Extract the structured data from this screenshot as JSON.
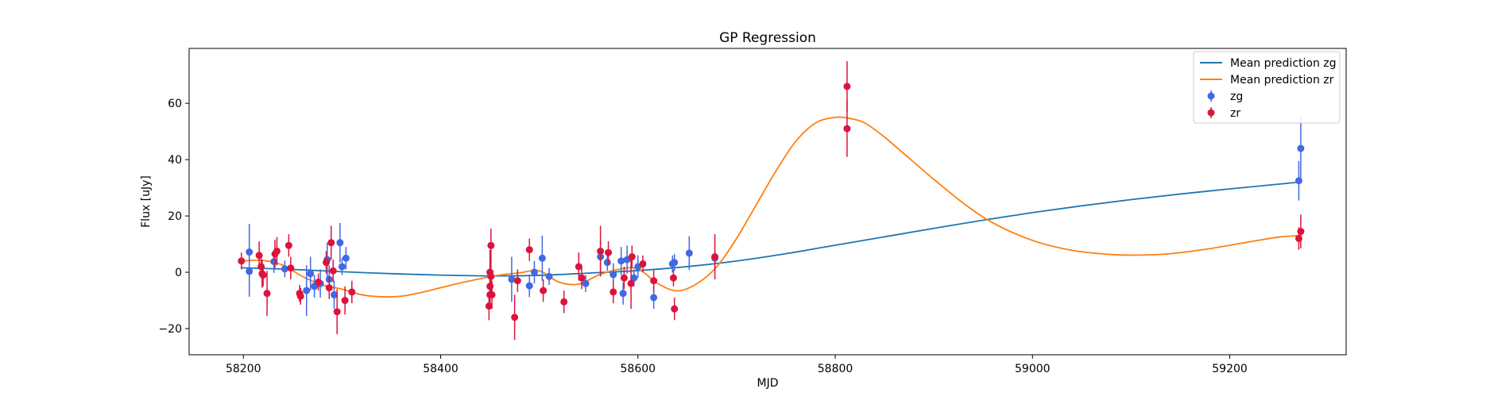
{
  "chart_data": {
    "type": "scatter",
    "title": "GP Regression",
    "xlabel": "MJD",
    "ylabel": "Flux [uJy]",
    "xlim": [
      58145,
      59318
    ],
    "ylim": [
      -29.3,
      79.5
    ],
    "xticks": [
      58200,
      58400,
      58600,
      58800,
      59000,
      59200
    ],
    "yticks": [
      -20,
      0,
      20,
      40,
      60
    ],
    "grid": false,
    "legend_position": "top-right",
    "legend": [
      {
        "label": "Mean prediction zg",
        "kind": "line",
        "color": "#1f77b4"
      },
      {
        "label": "Mean prediction zr",
        "kind": "line",
        "color": "#ff7f0e"
      },
      {
        "label": "zg",
        "kind": "errorbar",
        "color": "#4169e1"
      },
      {
        "label": "zr",
        "kind": "errorbar",
        "color": "#dc143c"
      }
    ],
    "lines": [
      {
        "name": "Mean prediction zg",
        "color": "#1f77b4",
        "x": [
          58198,
          58250,
          58300,
          58350,
          58400,
          58450,
          58500,
          58550,
          58600,
          58650,
          58700,
          58750,
          58800,
          58850,
          58900,
          58950,
          59000,
          59050,
          59100,
          59150,
          59200,
          59250,
          59270
        ],
        "y": [
          1.6,
          1.0,
          0.2,
          -0.5,
          -1.0,
          -1.3,
          -1.1,
          -0.3,
          0.6,
          2.0,
          4.0,
          6.6,
          9.6,
          12.6,
          15.6,
          18.5,
          21.2,
          23.6,
          25.8,
          27.8,
          29.6,
          31.3,
          32.0
        ]
      },
      {
        "name": "Mean prediction zr",
        "color": "#ff7f0e",
        "x": [
          58198,
          58220,
          58240,
          58260,
          58280,
          58300,
          58320,
          58340,
          58360,
          58380,
          58400,
          58420,
          58440,
          58460,
          58480,
          58500,
          58520,
          58540,
          58560,
          58580,
          58600,
          58620,
          58640,
          58660,
          58680,
          58700,
          58720,
          58740,
          58760,
          58780,
          58800,
          58815,
          58830,
          58850,
          58870,
          58900,
          58930,
          58960,
          59000,
          59040,
          59080,
          59110,
          59140,
          59180,
          59220,
          59250,
          59270
        ],
        "y": [
          4.0,
          4.2,
          2.5,
          -1.5,
          -4.5,
          -6.0,
          -8.0,
          -8.7,
          -8.5,
          -7.2,
          -5.5,
          -3.8,
          -2.3,
          -1.0,
          -0.2,
          0.5,
          -3.5,
          -4.2,
          -1.0,
          1.0,
          1.2,
          -4.0,
          -6.6,
          -4.0,
          2.0,
          12.0,
          24.0,
          36.0,
          46.5,
          53.0,
          55.0,
          54.6,
          53.0,
          48.0,
          42.0,
          33.0,
          24.5,
          17.5,
          11.3,
          7.8,
          6.3,
          6.1,
          6.6,
          8.4,
          10.8,
          12.5,
          13.0
        ]
      }
    ],
    "series": [
      {
        "name": "zg",
        "color": "#4169e1",
        "points": [
          {
            "x": 58206,
            "y": 7.2,
            "err": 10
          },
          {
            "x": 58206,
            "y": 0.3,
            "err": 9
          },
          {
            "x": 58231,
            "y": 3.8,
            "err": 4
          },
          {
            "x": 58242,
            "y": 1.2,
            "err": 3
          },
          {
            "x": 58264,
            "y": -6.5,
            "err": 9
          },
          {
            "x": 58268,
            "y": -0.5,
            "err": 6
          },
          {
            "x": 58272,
            "y": -5.0,
            "err": 4
          },
          {
            "x": 58278,
            "y": -4.0,
            "err": 5
          },
          {
            "x": 58285,
            "y": 4.5,
            "err": 6
          },
          {
            "x": 58287,
            "y": -2.5,
            "err": 5
          },
          {
            "x": 58292,
            "y": -8.0,
            "err": 5
          },
          {
            "x": 58298,
            "y": 10.5,
            "err": 7
          },
          {
            "x": 58300,
            "y": 2.0,
            "err": 3
          },
          {
            "x": 58304,
            "y": 5.0,
            "err": 4
          },
          {
            "x": 58472,
            "y": -2.5,
            "err": 8
          },
          {
            "x": 58490,
            "y": -4.8,
            "err": 4
          },
          {
            "x": 58495,
            "y": 0.0,
            "err": 4
          },
          {
            "x": 58503,
            "y": 5.0,
            "err": 8
          },
          {
            "x": 58510,
            "y": -1.5,
            "err": 3
          },
          {
            "x": 58547,
            "y": -4.0,
            "err": 3
          },
          {
            "x": 58562,
            "y": 5.5,
            "err": 6
          },
          {
            "x": 58569,
            "y": 3.5,
            "err": 3
          },
          {
            "x": 58575,
            "y": -0.8,
            "err": 4
          },
          {
            "x": 58583,
            "y": 4.0,
            "err": 5
          },
          {
            "x": 58585,
            "y": -7.5,
            "err": 4
          },
          {
            "x": 58589,
            "y": 4.5,
            "err": 5
          },
          {
            "x": 58596,
            "y": -2.0,
            "err": 3
          },
          {
            "x": 58600,
            "y": 2.0,
            "err": 4
          },
          {
            "x": 58616,
            "y": -9.0,
            "err": 4
          },
          {
            "x": 58635,
            "y": 3.0,
            "err": 3
          },
          {
            "x": 58637,
            "y": 3.5,
            "err": 3
          },
          {
            "x": 58652,
            "y": 6.8,
            "err": 6
          },
          {
            "x": 58678,
            "y": 5.0,
            "err": 4
          },
          {
            "x": 59270,
            "y": 32.5,
            "err": 7
          },
          {
            "x": 59272,
            "y": 44.0,
            "err": 11
          }
        ]
      },
      {
        "name": "zr",
        "color": "#dc143c",
        "points": [
          {
            "x": 58198,
            "y": 4.0,
            "err": 3
          },
          {
            "x": 58216,
            "y": 6.0,
            "err": 5
          },
          {
            "x": 58218,
            "y": 2.0,
            "err": 4
          },
          {
            "x": 58219,
            "y": -0.5,
            "err": 5
          },
          {
            "x": 58220,
            "y": -1.0,
            "err": 4
          },
          {
            "x": 58224,
            "y": -7.5,
            "err": 8
          },
          {
            "x": 58232,
            "y": 6.5,
            "err": 5
          },
          {
            "x": 58234,
            "y": 7.5,
            "err": 5
          },
          {
            "x": 58246,
            "y": 9.5,
            "err": 4
          },
          {
            "x": 58248,
            "y": 1.5,
            "err": 4
          },
          {
            "x": 58257,
            "y": -7.5,
            "err": 3
          },
          {
            "x": 58258,
            "y": -8.5,
            "err": 3
          },
          {
            "x": 58276,
            "y": -3.5,
            "err": 3
          },
          {
            "x": 58284,
            "y": 3.5,
            "err": 4
          },
          {
            "x": 58287,
            "y": -5.5,
            "err": 4
          },
          {
            "x": 58289,
            "y": 10.5,
            "err": 6
          },
          {
            "x": 58291,
            "y": 0.5,
            "err": 4
          },
          {
            "x": 58295,
            "y": -14.0,
            "err": 8
          },
          {
            "x": 58303,
            "y": -10.0,
            "err": 5
          },
          {
            "x": 58310,
            "y": -7.0,
            "err": 4
          },
          {
            "x": 58450,
            "y": 0.0,
            "err": 8
          },
          {
            "x": 58451,
            "y": 9.5,
            "err": 6
          },
          {
            "x": 58451,
            "y": -1.5,
            "err": 6
          },
          {
            "x": 58450,
            "y": -5.0,
            "err": 6
          },
          {
            "x": 58450,
            "y": -8.0,
            "err": 5
          },
          {
            "x": 58452,
            "y": -8.0,
            "err": 5
          },
          {
            "x": 58449,
            "y": -12.0,
            "err": 5
          },
          {
            "x": 58475,
            "y": -16.0,
            "err": 8
          },
          {
            "x": 58478,
            "y": -3.0,
            "err": 4
          },
          {
            "x": 58490,
            "y": 8.0,
            "err": 4
          },
          {
            "x": 58504,
            "y": -6.5,
            "err": 4
          },
          {
            "x": 58525,
            "y": -10.5,
            "err": 4
          },
          {
            "x": 58540,
            "y": 2.0,
            "err": 5
          },
          {
            "x": 58543,
            "y": -2.0,
            "err": 4
          },
          {
            "x": 58562,
            "y": 7.5,
            "err": 9
          },
          {
            "x": 58570,
            "y": 7.0,
            "err": 4
          },
          {
            "x": 58575,
            "y": -7.0,
            "err": 4
          },
          {
            "x": 58586,
            "y": -2.0,
            "err": 4
          },
          {
            "x": 58594,
            "y": 5.5,
            "err": 4
          },
          {
            "x": 58593,
            "y": -4.0,
            "err": 9
          },
          {
            "x": 58605,
            "y": 3.0,
            "err": 3
          },
          {
            "x": 58616,
            "y": -3.0,
            "err": 4
          },
          {
            "x": 58636,
            "y": -2.0,
            "err": 3
          },
          {
            "x": 58637,
            "y": -13.0,
            "err": 4
          },
          {
            "x": 58678,
            "y": 5.5,
            "err": 8
          },
          {
            "x": 58812,
            "y": 66.0,
            "err": 9
          },
          {
            "x": 58812,
            "y": 51.0,
            "err": 10
          },
          {
            "x": 59270,
            "y": 12.0,
            "err": 4
          },
          {
            "x": 59272,
            "y": 14.5,
            "err": 6
          }
        ]
      }
    ]
  }
}
